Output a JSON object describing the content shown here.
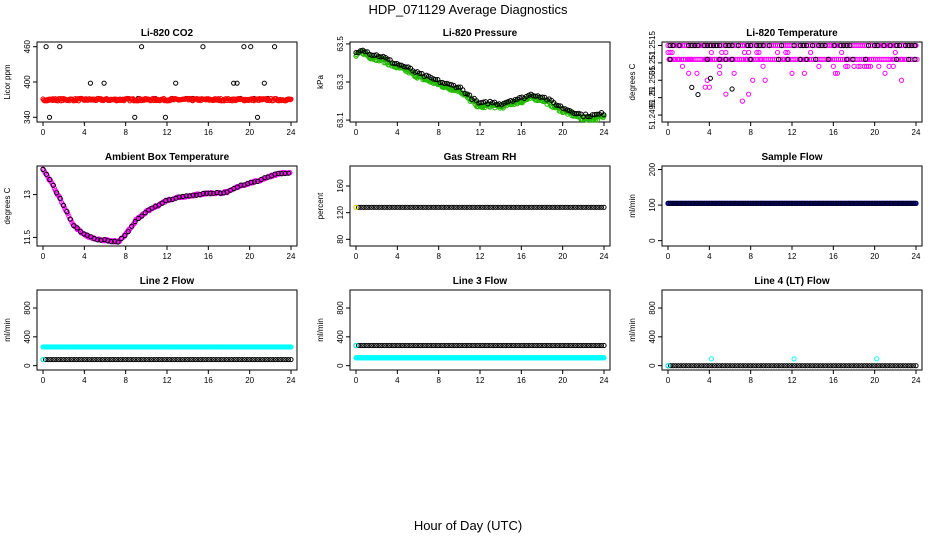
{
  "title": "HDP_071129  Average Diagnostics",
  "xlabel": "Hour of Day (UTC)",
  "colors": {
    "black": "#000000",
    "red": "#ff0000",
    "green": "#22bb00",
    "magenta": "#ff00ff",
    "yellow": "#ffee00",
    "blue": "#0000ff",
    "cyan": "#00ffff"
  },
  "chart_data": [
    {
      "type": "scatter",
      "title": "Li-820 CO2",
      "ylabel": "Licor ppm",
      "xlim": [
        0,
        24
      ],
      "xticks": [
        0,
        4,
        8,
        12,
        16,
        20,
        24
      ],
      "ylim": [
        332,
        468
      ],
      "yticks": [
        340,
        400,
        460
      ],
      "series": [
        {
          "name": "outliers",
          "color": "black",
          "generator": "co2_outliers"
        },
        {
          "name": "co2",
          "color": "red",
          "generator": "co2_main"
        }
      ]
    },
    {
      "type": "scatter",
      "title": "Li-820 Pressure",
      "ylabel": "kPa",
      "xlim": [
        0,
        24
      ],
      "xticks": [
        0,
        4,
        8,
        12,
        16,
        20,
        24
      ],
      "ylim": [
        63.09,
        63.51
      ],
      "yticks": [
        63.1,
        63.3,
        63.5
      ],
      "series": [
        {
          "name": "pressure_a",
          "color": "green",
          "generator": "pressure_green"
        },
        {
          "name": "pressure_b",
          "color": "black",
          "generator": "pressure_black"
        }
      ]
    },
    {
      "type": "scatter",
      "title": "Li-820 Temperature",
      "ylabel": "degrees C",
      "xlim": [
        0,
        24
      ],
      "xticks": [
        0,
        4,
        8,
        12,
        16,
        20,
        24
      ],
      "ylim": [
        51.2493,
        51.2516
      ],
      "yticks": [
        51.2495,
        51.25,
        51.2505,
        51.251,
        51.2515
      ],
      "series": [
        {
          "name": "temp_a",
          "color": "magenta",
          "generator": "licor_temp_magenta"
        },
        {
          "name": "temp_b",
          "color": "black",
          "generator": "licor_temp_black"
        }
      ]
    },
    {
      "type": "scatter",
      "title": "Ambient Box Temperature",
      "ylabel": "degrees C",
      "xlim": [
        0,
        24
      ],
      "xticks": [
        0,
        4,
        8,
        12,
        16,
        20,
        24
      ],
      "ylim": [
        11.2,
        14.0
      ],
      "yticks": [
        11.5,
        13.0
      ],
      "series": [
        {
          "name": "box_temp",
          "color": "magenta",
          "generator": "box_temp_magenta"
        },
        {
          "name": "box_temp_b",
          "color": "black",
          "generator": "box_temp_black"
        }
      ]
    },
    {
      "type": "scatter",
      "title": "Gas Stream RH",
      "ylabel": "percent",
      "xlim": [
        0,
        24
      ],
      "xticks": [
        0,
        4,
        8,
        12,
        16,
        20,
        24
      ],
      "ylim": [
        70,
        190
      ],
      "yticks": [
        80,
        120,
        160
      ],
      "series": [
        {
          "name": "rh",
          "color": "black",
          "generator": "const",
          "value": 128,
          "dense": 0.25
        },
        {
          "name": "rh_start",
          "color": "yellow",
          "points": [
            [
              0,
              128
            ]
          ]
        }
      ]
    },
    {
      "type": "scatter",
      "title": "Sample Flow",
      "ylabel": "ml/min",
      "xlim": [
        0,
        24
      ],
      "xticks": [
        0,
        4,
        8,
        12,
        16,
        20,
        24
      ],
      "ylim": [
        -15,
        210
      ],
      "yticks": [
        0,
        100,
        200
      ],
      "series": [
        {
          "name": "flow_blue",
          "color": "blue",
          "generator": "const",
          "value": 105,
          "dense": 0.08
        },
        {
          "name": "flow_black",
          "color": "black",
          "generator": "const",
          "value": 105,
          "dense": 0.25
        }
      ]
    },
    {
      "type": "scatter",
      "title": "Line 2 Flow",
      "ylabel": "ml/min",
      "xlim": [
        0,
        24
      ],
      "xticks": [
        0,
        4,
        8,
        12,
        16,
        20,
        24
      ],
      "ylim": [
        -60,
        1050
      ],
      "yticks": [
        0,
        400,
        800
      ],
      "series": [
        {
          "name": "line2_cyan",
          "color": "cyan",
          "generator": "const",
          "value": 260,
          "dense": 0.08
        },
        {
          "name": "line2_black",
          "color": "black",
          "generator": "const",
          "value": 85,
          "dense": 0.25
        },
        {
          "name": "line2_start",
          "color": "cyan",
          "points": [
            [
              0,
              85
            ]
          ]
        }
      ]
    },
    {
      "type": "scatter",
      "title": "Line 3 Flow",
      "ylabel": "ml/min",
      "xlim": [
        0,
        24
      ],
      "xticks": [
        0,
        4,
        8,
        12,
        16,
        20,
        24
      ],
      "ylim": [
        -60,
        1050
      ],
      "yticks": [
        0,
        400,
        800
      ],
      "series": [
        {
          "name": "line3_cyan",
          "color": "cyan",
          "generator": "const",
          "value": 110,
          "dense": 0.08
        },
        {
          "name": "line3_black",
          "color": "black",
          "generator": "const",
          "value": 280,
          "dense": 0.25
        },
        {
          "name": "line3_start",
          "color": "cyan",
          "points": [
            [
              0,
              280
            ]
          ]
        }
      ]
    },
    {
      "type": "scatter",
      "title": "Line 4 (LT) Flow",
      "ylabel": "ml/min",
      "xlim": [
        0,
        24
      ],
      "xticks": [
        0,
        4,
        8,
        12,
        16,
        20,
        24
      ],
      "ylim": [
        -60,
        1050
      ],
      "yticks": [
        0,
        400,
        800
      ],
      "series": [
        {
          "name": "line4_black",
          "color": "black",
          "generator": "const",
          "value": 0,
          "dense": 0.25
        },
        {
          "name": "line4_cyan",
          "color": "cyan",
          "points": [
            [
              0,
              0
            ],
            [
              4.2,
              95
            ],
            [
              12.2,
              95
            ],
            [
              20.2,
              95
            ]
          ]
        }
      ]
    }
  ]
}
